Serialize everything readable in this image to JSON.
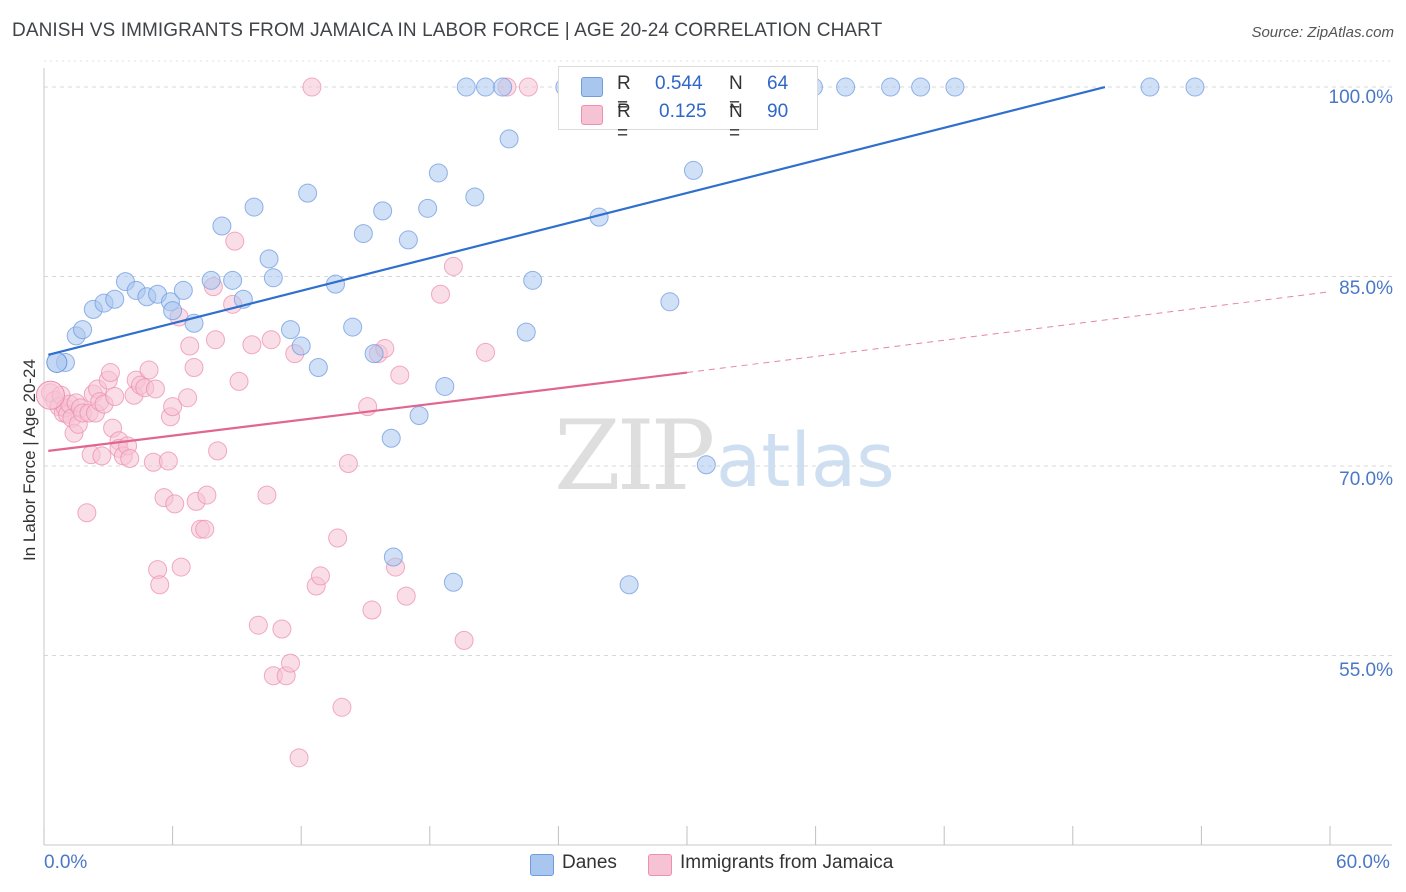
{
  "title": "DANISH VS IMMIGRANTS FROM JAMAICA IN LABOR FORCE | AGE 20-24 CORRELATION CHART",
  "source": "Source: ZipAtlas.com",
  "watermark": {
    "zip": "ZIP",
    "atlas": "atlas"
  },
  "stats": {
    "danes": {
      "r_label": "R =",
      "r": "0.544",
      "n_label": "N =",
      "n": "64"
    },
    "jamaica": {
      "r_label": "R =",
      "r": "0.125",
      "n_label": "N =",
      "n": "90"
    }
  },
  "colors": {
    "danes": "#6f9be0",
    "danes_fill": "#a9c6ef",
    "danes_line": "#2f6fce",
    "jamaica": "#ee8fae",
    "jamaica_fill": "#f6c3d4",
    "jamaica_line": "#e06690",
    "tick_text": "#4a78c7"
  },
  "chart_data": {
    "type": "scatter",
    "title": "DANISH VS IMMIGRANTS FROM JAMAICA IN LABOR FORCE | AGE 20-24 CORRELATION CHART",
    "xlabel": "",
    "ylabel": "In Labor Force | Age 20-24",
    "xlim": [
      0,
      60
    ],
    "ylim": [
      40,
      102.3
    ],
    "x_tick_labels": [
      "0.0%",
      "60.0%"
    ],
    "y_ticks": [
      55,
      70,
      85,
      100
    ],
    "y_tick_labels": [
      "55.0%",
      "70.0%",
      "85.0%",
      "100.0%"
    ],
    "grid": true,
    "series": [
      {
        "name": "Danes",
        "trend": {
          "x": [
            0.2,
            49.5
          ],
          "y": [
            78.8,
            100
          ]
        },
        "points": [
          [
            1.0,
            78.2
          ],
          [
            1.5,
            80.3
          ],
          [
            1.8,
            80.8
          ],
          [
            2.3,
            82.4
          ],
          [
            2.8,
            82.9
          ],
          [
            3.3,
            83.2
          ],
          [
            3.8,
            84.6
          ],
          [
            4.3,
            83.9
          ],
          [
            4.8,
            83.4
          ],
          [
            5.3,
            83.6
          ],
          [
            5.9,
            83.0
          ],
          [
            6.0,
            82.3
          ],
          [
            6.5,
            83.9
          ],
          [
            7.0,
            81.3
          ],
          [
            7.8,
            84.7
          ],
          [
            8.3,
            89.0
          ],
          [
            8.8,
            84.7
          ],
          [
            9.3,
            83.2
          ],
          [
            9.8,
            90.5
          ],
          [
            10.5,
            86.4
          ],
          [
            10.7,
            84.9
          ],
          [
            11.5,
            80.8
          ],
          [
            12.0,
            79.5
          ],
          [
            12.3,
            91.6
          ],
          [
            12.8,
            77.8
          ],
          [
            13.6,
            84.4
          ],
          [
            14.4,
            81.0
          ],
          [
            14.9,
            88.4
          ],
          [
            15.4,
            78.9
          ],
          [
            15.8,
            90.2
          ],
          [
            16.2,
            72.2
          ],
          [
            16.3,
            62.8
          ],
          [
            17.0,
            87.9
          ],
          [
            17.5,
            74.0
          ],
          [
            17.9,
            90.4
          ],
          [
            18.4,
            93.2
          ],
          [
            18.7,
            76.3
          ],
          [
            19.1,
            60.8
          ],
          [
            19.7,
            100.0
          ],
          [
            20.1,
            91.3
          ],
          [
            20.6,
            100.0
          ],
          [
            21.4,
            100.0
          ],
          [
            21.7,
            95.9
          ],
          [
            22.5,
            80.6
          ],
          [
            22.8,
            84.7
          ],
          [
            24.3,
            100.0
          ],
          [
            25.0,
            100.0
          ],
          [
            25.9,
            89.7
          ],
          [
            27.2,
            100.0
          ],
          [
            27.3,
            60.6
          ],
          [
            28.0,
            100.0
          ],
          [
            29.2,
            83.0
          ],
          [
            29.7,
            100.0
          ],
          [
            30.2,
            100.0
          ],
          [
            30.3,
            93.4
          ],
          [
            30.9,
            70.1
          ],
          [
            33.3,
            100.0
          ],
          [
            35.9,
            100.0
          ],
          [
            37.4,
            100.0
          ],
          [
            39.5,
            100.0
          ],
          [
            40.9,
            100.0
          ],
          [
            42.5,
            100.0
          ],
          [
            51.6,
            100.0
          ],
          [
            53.7,
            100.0
          ]
        ]
      },
      {
        "name": "Immigrants from Jamaica",
        "trend": {
          "x": [
            0.2,
            30.0
          ],
          "y": [
            71.2,
            77.4
          ]
        },
        "trend_dashed": {
          "x": [
            30.0,
            60.0
          ],
          "y": [
            77.4,
            83.8
          ]
        },
        "points": [
          [
            0.3,
            75.8
          ],
          [
            0.5,
            75.2
          ],
          [
            0.7,
            74.7
          ],
          [
            0.8,
            75.6
          ],
          [
            0.9,
            74.2
          ],
          [
            1.0,
            74.6
          ],
          [
            1.1,
            74.1
          ],
          [
            1.2,
            74.9
          ],
          [
            1.3,
            73.8
          ],
          [
            1.4,
            72.6
          ],
          [
            1.5,
            75.0
          ],
          [
            1.6,
            73.3
          ],
          [
            1.7,
            74.6
          ],
          [
            1.8,
            74.2
          ],
          [
            2.0,
            66.3
          ],
          [
            2.1,
            74.2
          ],
          [
            2.2,
            70.9
          ],
          [
            2.3,
            75.7
          ],
          [
            2.4,
            74.2
          ],
          [
            2.5,
            76.1
          ],
          [
            2.6,
            75.1
          ],
          [
            2.7,
            70.8
          ],
          [
            2.8,
            74.9
          ],
          [
            3.0,
            76.8
          ],
          [
            3.1,
            77.4
          ],
          [
            3.2,
            73.0
          ],
          [
            3.3,
            75.5
          ],
          [
            3.5,
            72.0
          ],
          [
            3.5,
            71.4
          ],
          [
            3.7,
            70.8
          ],
          [
            3.9,
            71.6
          ],
          [
            4.0,
            70.6
          ],
          [
            4.2,
            75.6
          ],
          [
            4.3,
            76.8
          ],
          [
            4.5,
            76.4
          ],
          [
            4.7,
            76.2
          ],
          [
            4.9,
            77.6
          ],
          [
            5.1,
            70.3
          ],
          [
            5.2,
            76.1
          ],
          [
            5.3,
            61.8
          ],
          [
            5.4,
            60.6
          ],
          [
            5.6,
            67.5
          ],
          [
            5.8,
            70.4
          ],
          [
            5.9,
            73.9
          ],
          [
            6.0,
            74.7
          ],
          [
            6.1,
            67.0
          ],
          [
            6.3,
            81.8
          ],
          [
            6.4,
            62.0
          ],
          [
            6.7,
            75.4
          ],
          [
            6.8,
            79.5
          ],
          [
            7.0,
            77.8
          ],
          [
            7.1,
            67.2
          ],
          [
            7.3,
            65.0
          ],
          [
            7.5,
            65.0
          ],
          [
            7.6,
            67.7
          ],
          [
            7.9,
            84.2
          ],
          [
            8.0,
            80.0
          ],
          [
            8.1,
            71.2
          ],
          [
            8.8,
            82.8
          ],
          [
            8.9,
            87.8
          ],
          [
            9.1,
            76.7
          ],
          [
            9.7,
            79.6
          ],
          [
            10.0,
            57.4
          ],
          [
            10.4,
            67.7
          ],
          [
            10.6,
            80.0
          ],
          [
            10.7,
            53.4
          ],
          [
            11.1,
            57.1
          ],
          [
            11.3,
            53.4
          ],
          [
            11.5,
            54.4
          ],
          [
            11.7,
            78.9
          ],
          [
            11.9,
            46.9
          ],
          [
            12.5,
            100.0
          ],
          [
            12.7,
            60.5
          ],
          [
            12.9,
            61.3
          ],
          [
            13.7,
            64.3
          ],
          [
            13.9,
            50.9
          ],
          [
            14.2,
            70.2
          ],
          [
            15.1,
            74.7
          ],
          [
            15.3,
            58.6
          ],
          [
            15.6,
            78.9
          ],
          [
            15.9,
            79.3
          ],
          [
            16.4,
            62.0
          ],
          [
            16.6,
            77.2
          ],
          [
            16.9,
            59.7
          ],
          [
            18.5,
            83.6
          ],
          [
            19.1,
            85.8
          ],
          [
            19.6,
            56.2
          ],
          [
            20.6,
            79.0
          ],
          [
            21.6,
            100.0
          ],
          [
            22.6,
            100.0
          ]
        ]
      }
    ]
  },
  "legend": {
    "danes": "Danes",
    "jamaica": "Immigrants from Jamaica"
  }
}
